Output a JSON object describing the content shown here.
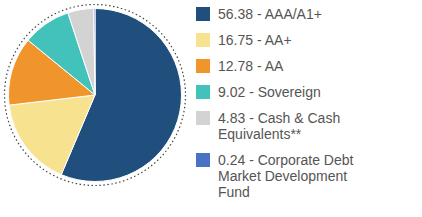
{
  "chart_data": {
    "type": "pie",
    "categories": [
      "56.38 - AAA/A1+",
      "16.75 - AA+",
      "12.78 - AA",
      "9.02 - Sovereign",
      "4.83 - Cash & Cash Equivalents**",
      "0.24 - Corporate Debt Market Development Fund"
    ],
    "values": [
      56.38,
      16.75,
      12.78,
      9.02,
      4.83,
      0.24
    ],
    "colors": [
      "#214f7d",
      "#f7e28f",
      "#f0952c",
      "#43c2bc",
      "#d3d3d3",
      "#4a72c4"
    ],
    "legend": "right"
  }
}
